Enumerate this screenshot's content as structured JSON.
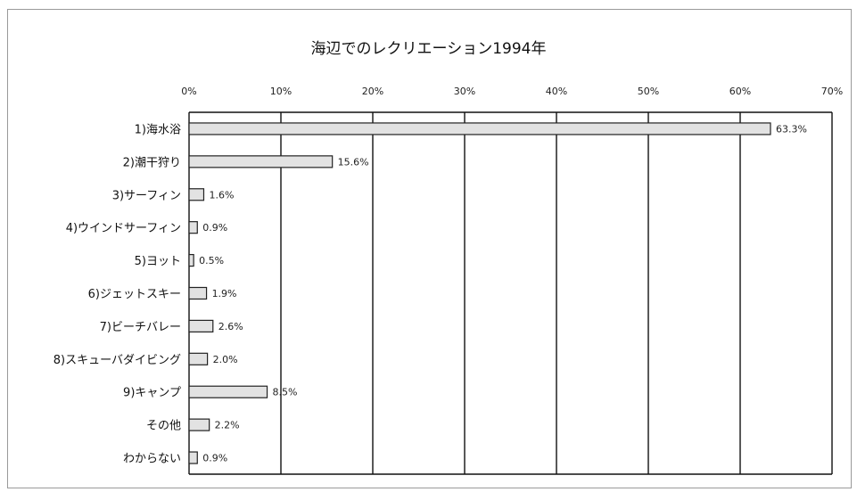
{
  "chart_data": {
    "type": "bar",
    "orientation": "horizontal",
    "title": "海辺でのレクリエーション1994年",
    "categories": [
      "1)海水浴",
      "2)潮干狩り",
      "3)サーフィン",
      "4)ウインドサーフィン",
      "5)ヨット",
      "6)ジェットスキー",
      "7)ビーチバレー",
      "8)スキューバダイビング",
      "9)キャンプ",
      "その他",
      "わからない"
    ],
    "values": [
      63.3,
      15.6,
      1.6,
      0.9,
      0.5,
      1.9,
      2.6,
      2.0,
      8.5,
      2.2,
      0.9
    ],
    "value_labels": [
      "63.3%",
      "15.6%",
      "1.6%",
      "0.9%",
      "0.5%",
      "1.9%",
      "2.6%",
      "2.0%",
      "8.5%",
      "2.2%",
      "0.9%"
    ],
    "xticks": [
      "0%",
      "10%",
      "20%",
      "30%",
      "40%",
      "50%",
      "60%",
      "70%"
    ],
    "xlim": [
      0,
      70
    ],
    "grid": true,
    "legend": "none",
    "colors": {
      "bar_fill": "#e2e2e2",
      "bar_stroke": "#222222",
      "grid": "#111111"
    }
  }
}
